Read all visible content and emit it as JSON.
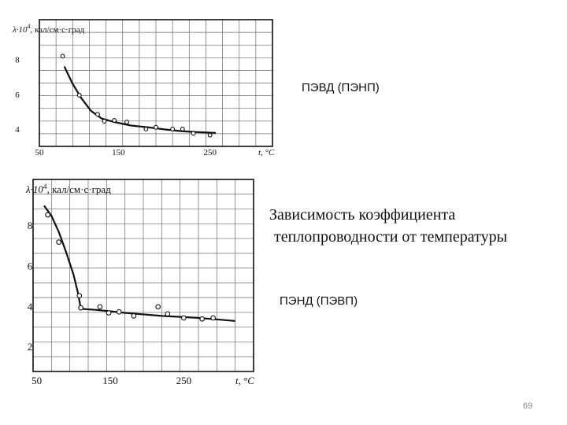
{
  "slide": {
    "label_top": "ПЭВД (ПЭНП)",
    "caption_line1": "Зависимость коэффициента",
    "caption_line2": "теплопроводности от температуры",
    "label_bottom": "ПЭНД (ПЭВП)",
    "page_number": "69"
  },
  "chart_data": [
    {
      "type": "line",
      "ylabel_parts": [
        "λ·10",
        "4",
        ", кал/см·с·град"
      ],
      "xlabel": "t, °C",
      "x_tick_labels": [
        "50",
        "150",
        "250"
      ],
      "y_tick_labels": [
        "4",
        "6",
        "8"
      ],
      "xlim": [
        50,
        330
      ],
      "ylim": [
        3,
        10.3
      ],
      "grid": true,
      "series": [
        {
          "points": [
            {
              "x": 78,
              "y": 8.2
            },
            {
              "x": 98,
              "y": 5.95
            },
            {
              "x": 120,
              "y": 4.85
            },
            {
              "x": 128,
              "y": 4.45
            },
            {
              "x": 140,
              "y": 4.5
            },
            {
              "x": 155,
              "y": 4.4
            },
            {
              "x": 178,
              "y": 4.0
            },
            {
              "x": 190,
              "y": 4.1
            },
            {
              "x": 210,
              "y": 4.0
            },
            {
              "x": 222,
              "y": 4.0
            },
            {
              "x": 235,
              "y": 3.75
            },
            {
              "x": 255,
              "y": 3.65
            }
          ],
          "curve": [
            {
              "x": 80,
              "y": 7.6
            },
            {
              "x": 90,
              "y": 6.6
            },
            {
              "x": 100,
              "y": 5.8
            },
            {
              "x": 112,
              "y": 5.05
            },
            {
              "x": 125,
              "y": 4.6
            },
            {
              "x": 140,
              "y": 4.4
            },
            {
              "x": 160,
              "y": 4.2
            },
            {
              "x": 180,
              "y": 4.1
            },
            {
              "x": 200,
              "y": 3.98
            },
            {
              "x": 220,
              "y": 3.88
            },
            {
              "x": 240,
              "y": 3.82
            },
            {
              "x": 262,
              "y": 3.78
            }
          ]
        }
      ]
    },
    {
      "type": "line",
      "ylabel_parts": [
        "λ·10",
        "4",
        ", кал/см·с·град"
      ],
      "xlabel": "t, °C",
      "x_tick_labels": [
        "50",
        "150",
        "250"
      ],
      "y_tick_labels": [
        "2",
        "4",
        "6",
        "8"
      ],
      "xlim": [
        45,
        345
      ],
      "ylim": [
        0.8,
        10.3
      ],
      "grid": true,
      "series": [
        {
          "points": [
            {
              "x": 65,
              "y": 8.55
            },
            {
              "x": 80,
              "y": 7.2
            },
            {
              "x": 108,
              "y": 4.55
            },
            {
              "x": 110,
              "y": 3.95
            },
            {
              "x": 136,
              "y": 4.0
            },
            {
              "x": 148,
              "y": 3.7
            },
            {
              "x": 162,
              "y": 3.75
            },
            {
              "x": 182,
              "y": 3.55
            },
            {
              "x": 215,
              "y": 4.0
            },
            {
              "x": 228,
              "y": 3.65
            },
            {
              "x": 250,
              "y": 3.45
            },
            {
              "x": 275,
              "y": 3.4
            },
            {
              "x": 290,
              "y": 3.45
            }
          ],
          "curve": [
            {
              "x": 60,
              "y": 9.0
            },
            {
              "x": 70,
              "y": 8.5
            },
            {
              "x": 80,
              "y": 7.7
            },
            {
              "x": 90,
              "y": 6.7
            },
            {
              "x": 100,
              "y": 5.6
            },
            {
              "x": 106,
              "y": 4.7
            },
            {
              "x": 110,
              "y": 3.9
            },
            {
              "x": 130,
              "y": 3.85
            },
            {
              "x": 170,
              "y": 3.7
            },
            {
              "x": 220,
              "y": 3.55
            },
            {
              "x": 270,
              "y": 3.45
            },
            {
              "x": 320,
              "y": 3.3
            }
          ]
        }
      ]
    }
  ]
}
